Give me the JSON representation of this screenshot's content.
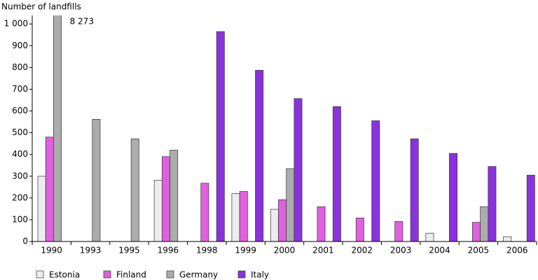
{
  "chart_data": {
    "type": "bar",
    "y_label": "Number of landfills",
    "categories": [
      "1990",
      "1993",
      "1995",
      "1996",
      "1998",
      "1999",
      "2000",
      "2001",
      "2002",
      "2003",
      "2004",
      "2005",
      "2006"
    ],
    "series": [
      {
        "name": "Estonia",
        "color": "#ececec",
        "values": [
          300,
          null,
          null,
          282,
          null,
          220,
          148,
          null,
          null,
          null,
          38,
          null,
          22
        ]
      },
      {
        "name": "Finland",
        "color": "#e060e0",
        "values": [
          480,
          null,
          null,
          390,
          268,
          230,
          192,
          160,
          108,
          92,
          null,
          88,
          null
        ]
      },
      {
        "name": "Germany",
        "color": "#acacac",
        "values": [
          8273,
          562,
          472,
          420,
          null,
          null,
          335,
          null,
          null,
          null,
          null,
          160,
          null
        ],
        "value_labels": [
          "8 273",
          null,
          null,
          null,
          null,
          null,
          null,
          null,
          null,
          null,
          null,
          null,
          null
        ]
      },
      {
        "name": "Italy",
        "color": "#8a33dd",
        "values": [
          null,
          null,
          null,
          null,
          965,
          787,
          657,
          620,
          555,
          472,
          405,
          345,
          305
        ]
      }
    ],
    "ylim": [
      0,
      1020
    ],
    "yticks": [
      0,
      100,
      200,
      300,
      400,
      500,
      600,
      700,
      800,
      900,
      {
        "value": 1000,
        "label": "1 000"
      }
    ],
    "grid": false,
    "legend": "bottom"
  }
}
